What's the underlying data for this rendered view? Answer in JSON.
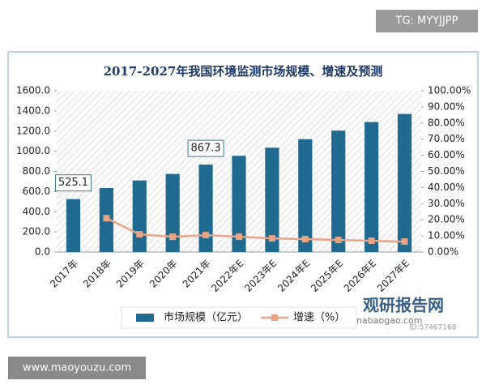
{
  "chart_data": {
    "type": "bar-line",
    "title": "2017-2027年我国环境监测市场规模、增速及预测",
    "categories": [
      "2017年",
      "2018年",
      "2019年",
      "2020年",
      "2021年",
      "2022年E",
      "2023年E",
      "2024年E",
      "2025年E",
      "2026年E",
      "2027年E"
    ],
    "series": [
      {
        "name": "市场规模（亿元）",
        "type": "bar",
        "color": "#1f6a8e",
        "values": [
          525.1,
          635,
          710,
          775,
          867.3,
          955,
          1035,
          1120,
          1205,
          1290,
          1370
        ],
        "value_labels": [
          "525.1",
          null,
          null,
          null,
          "867.3",
          null,
          null,
          null,
          null,
          null,
          null
        ]
      },
      {
        "name": "增速（%）",
        "type": "line",
        "axis": "y2",
        "color": "#e8a487",
        "values": [
          null,
          21,
          11,
          9.5,
          10.5,
          9.5,
          8.5,
          8,
          7.5,
          7,
          6.5
        ]
      }
    ],
    "ylim": [
      0,
      1600
    ],
    "yticks": [
      {
        "value": 0,
        "label": "0.0"
      },
      {
        "value": 200,
        "label": "200.0"
      },
      {
        "value": 400,
        "label": "400.0"
      },
      {
        "value": 600,
        "label": "600.0"
      },
      {
        "value": 800,
        "label": "800.0"
      },
      {
        "value": 1000,
        "label": "1000.0"
      },
      {
        "value": 1200,
        "label": "1200.0"
      },
      {
        "value": 1400,
        "label": "1400.0"
      },
      {
        "value": 1600,
        "label": "1600.0"
      }
    ],
    "y2lim": [
      0,
      100
    ],
    "y2ticks": [
      {
        "value": 0,
        "label": "0.00%"
      },
      {
        "value": 10,
        "label": "10.00%"
      },
      {
        "value": 20,
        "label": "20.00%"
      },
      {
        "value": 30,
        "label": "30.00%"
      },
      {
        "value": 40,
        "label": "40.00%"
      },
      {
        "value": 50,
        "label": "50.00%"
      },
      {
        "value": 60,
        "label": "60.00%"
      },
      {
        "value": 70,
        "label": "70.00%"
      },
      {
        "value": 80,
        "label": "80.00%"
      },
      {
        "value": 90,
        "label": "90.00%"
      },
      {
        "value": 100,
        "label": "100.00%"
      }
    ],
    "legend": "bottom"
  },
  "watermarks": {
    "top_right": "TG: MYYJJPP",
    "bottom_left": "www.maoyouzu.com",
    "logo": "观研报告网",
    "logo_sub": "chinabaogao.com",
    "id": "ID:57467168"
  }
}
